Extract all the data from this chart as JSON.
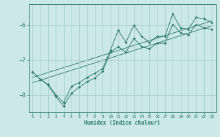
{
  "xlabel": "Humidex (Indice chaleur)",
  "bg_color": "#cce8e8",
  "line_color": "#2e7d6e",
  "grid_color": "#aacece",
  "xlim": [
    -0.5,
    23.5
  ],
  "ylim": [
    -8.5,
    -5.4
  ],
  "yticks": [
    -8,
    -7,
    -6
  ],
  "xticks": [
    0,
    1,
    2,
    3,
    4,
    5,
    6,
    7,
    8,
    9,
    10,
    11,
    12,
    13,
    14,
    15,
    16,
    17,
    18,
    19,
    20,
    21,
    22,
    23
  ],
  "series1": [
    [
      0,
      -7.35
    ],
    [
      1,
      -7.55
    ],
    [
      2,
      -7.7
    ],
    [
      3,
      -8.0
    ],
    [
      4,
      -8.22
    ],
    [
      5,
      -7.75
    ],
    [
      6,
      -7.65
    ],
    [
      7,
      -7.5
    ],
    [
      8,
      -7.38
    ],
    [
      9,
      -7.25
    ],
    [
      10,
      -6.72
    ],
    [
      11,
      -6.15
    ],
    [
      12,
      -6.5
    ],
    [
      13,
      -6.0
    ],
    [
      14,
      -6.32
    ],
    [
      15,
      -6.5
    ],
    [
      16,
      -6.32
    ],
    [
      17,
      -6.32
    ],
    [
      18,
      -5.68
    ],
    [
      19,
      -6.08
    ],
    [
      20,
      -6.12
    ],
    [
      21,
      -5.78
    ],
    [
      22,
      -5.82
    ],
    [
      23,
      -5.92
    ]
  ],
  "series2": [
    [
      0,
      -7.35
    ],
    [
      1,
      -7.55
    ],
    [
      2,
      -7.72
    ],
    [
      3,
      -8.05
    ],
    [
      4,
      -8.32
    ],
    [
      5,
      -7.95
    ],
    [
      6,
      -7.78
    ],
    [
      7,
      -7.62
    ],
    [
      8,
      -7.52
    ],
    [
      9,
      -7.32
    ],
    [
      10,
      -6.78
    ],
    [
      11,
      -6.62
    ],
    [
      12,
      -6.78
    ],
    [
      13,
      -6.38
    ],
    [
      14,
      -6.62
    ],
    [
      15,
      -6.68
    ],
    [
      16,
      -6.52
    ],
    [
      17,
      -6.52
    ],
    [
      18,
      -5.98
    ],
    [
      19,
      -6.22
    ],
    [
      20,
      -6.28
    ],
    [
      21,
      -5.98
    ],
    [
      22,
      -6.08
    ],
    [
      23,
      -6.12
    ]
  ],
  "trend1_x": [
    0,
    23
  ],
  "trend1_y": [
    -7.5,
    -5.88
  ],
  "trend2_x": [
    0,
    23
  ],
  "trend2_y": [
    -7.65,
    -6.02
  ]
}
